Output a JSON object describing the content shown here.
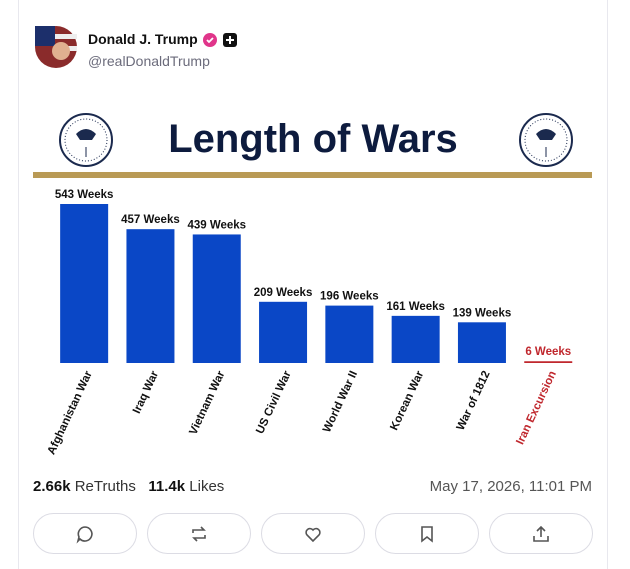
{
  "post": {
    "author": {
      "name": "Donald J. Trump",
      "handle": "@realDonaldTrump"
    },
    "stats": [
      {
        "value": "2.66k",
        "label": "ReTruths"
      },
      {
        "value": "11.4k",
        "label": "Likes"
      }
    ],
    "timestamp": "May 17, 2026, 11:01 PM"
  },
  "chart_data": {
    "type": "bar",
    "title": "Length of Wars",
    "categories": [
      "Afghanistan War",
      "Iraq War",
      "Vietnam War",
      "US Civil War",
      "World War II",
      "Korean War",
      "War of 1812",
      "Iran Excursion"
    ],
    "values": [
      543,
      457,
      439,
      209,
      196,
      161,
      139,
      6
    ],
    "value_labels": [
      "543 Weeks",
      "457 Weeks",
      "439 Weeks",
      "209 Weeks",
      "196 Weeks",
      "161 Weeks",
      "139 Weeks",
      "6 Weeks"
    ],
    "colors": [
      "#0a47c6",
      "#0a47c6",
      "#0a47c6",
      "#0a47c6",
      "#0a47c6",
      "#0a47c6",
      "#0a47c6",
      "#c0272d"
    ]
  }
}
